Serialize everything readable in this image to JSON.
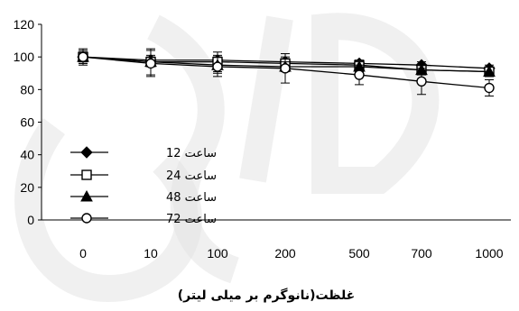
{
  "chart_data": {
    "type": "line",
    "categories": [
      "0",
      "10",
      "100",
      "200",
      "500",
      "700",
      "1000"
    ],
    "series": [
      {
        "name": "ساعت 12",
        "marker": "filled-diamond",
        "values": [
          100,
          98,
          98,
          97,
          96,
          95,
          93
        ],
        "errors": [
          3,
          3,
          3,
          3,
          2,
          2,
          2
        ]
      },
      {
        "name": "ساعت 24",
        "marker": "open-square",
        "values": [
          100,
          97,
          97,
          96,
          95,
          92,
          91
        ],
        "errors": [
          4,
          8,
          6,
          3,
          3,
          3,
          3
        ]
      },
      {
        "name": "ساعت 48",
        "marker": "filled-triangle",
        "values": [
          100,
          97,
          95,
          94,
          94,
          92,
          91
        ],
        "errors": [
          4,
          3,
          5,
          3,
          3,
          3,
          3
        ]
      },
      {
        "name": "ساعت 72",
        "marker": "open-circle",
        "values": [
          100,
          96,
          94,
          93,
          89,
          85,
          81
        ],
        "errors": [
          5,
          8,
          6,
          9,
          6,
          8,
          5
        ]
      }
    ],
    "yticks": [
      0,
      20,
      40,
      60,
      80,
      100,
      120
    ],
    "ylim": [
      0,
      120
    ],
    "xlabel": "غلظت(نانوگرم بر میلی لیتر)",
    "ylabel": "",
    "title": "",
    "grid": false,
    "legend_position": "left-inside",
    "colors": {
      "line": "#000000",
      "axis": "#000000"
    }
  }
}
